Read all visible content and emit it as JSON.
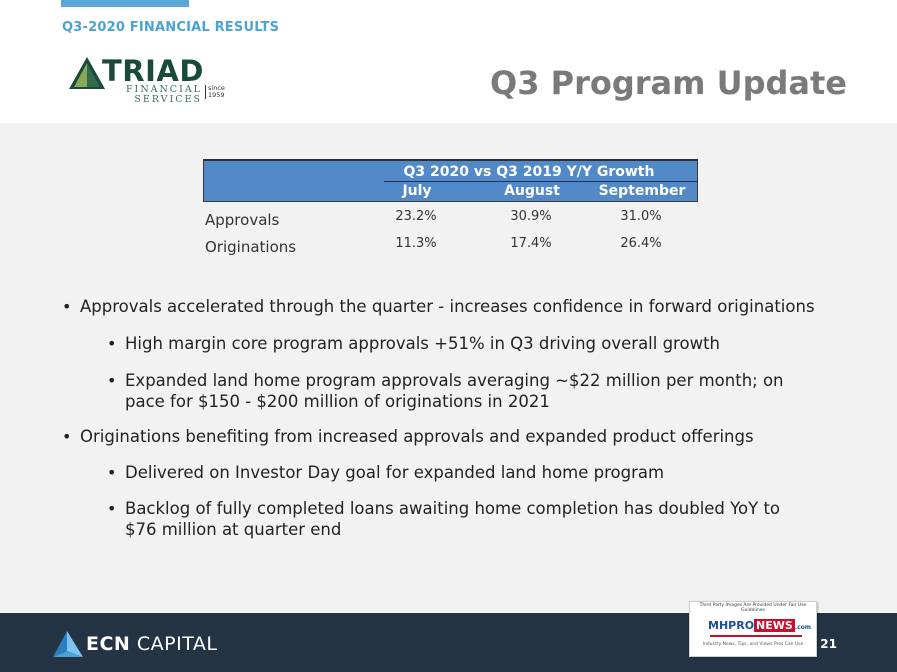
{
  "header": {
    "section_label": "Q3-2020 FINANCIAL RESULTS",
    "title": "Q3 Program Update",
    "logo": {
      "name": "TRIAD",
      "sub_line1": "FINANCIAL",
      "sub_line2": "SERVICES",
      "since_line1": "since",
      "since_line2": "1959",
      "icon": "triad-triangle-logo"
    }
  },
  "table": {
    "title": "Q3 2020 vs Q3 2019 Y/Y Growth",
    "columns": [
      "July",
      "August",
      "September"
    ],
    "rows": [
      {
        "label": "Approvals",
        "values": [
          "23.2%",
          "30.9%",
          "31.0%"
        ]
      },
      {
        "label": "Originations",
        "values": [
          "11.3%",
          "17.4%",
          "26.4%"
        ]
      }
    ]
  },
  "bullets": [
    "Approvals accelerated through the quarter - increases confidence in forward originations",
    "High margin core program approvals +51% in Q3 driving overall growth",
    "Expanded land home program approvals averaging ~$22 million per month; on",
    "pace for $150 - $200 million of originations in 2021",
    "Originations benefiting from increased approvals and expanded product offerings",
    "Delivered on Investor Day goal for expanded land home program",
    "Backlog of fully completed loans awaiting home completion has doubled YoY to",
    "$76 million at quarter end"
  ],
  "footer": {
    "brand_bold": "ECN",
    "brand_light": "CAPITAL",
    "page_number": "21",
    "icon": "ecn-mountain-logo"
  },
  "watermark": {
    "top_text": "Third Party Images Are Provided Under Fair Use Guidelines",
    "mh": "MH",
    "pro": "PRO",
    "news": "NEWS",
    "com": ".com",
    "bottom_text": "Industry News, Tips, and Views Pros Can Use"
  },
  "colors": {
    "accent": "#4aa3d3",
    "table_header": "#5289c8",
    "footer": "#243444",
    "title_gray": "#7a7a7a",
    "content_bg": "#f2f2f2"
  }
}
